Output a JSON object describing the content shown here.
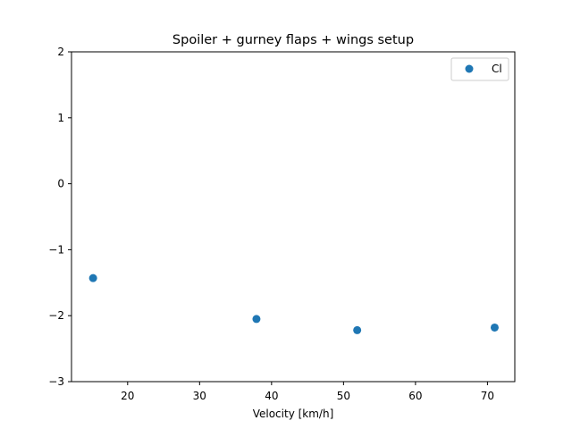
{
  "chart_data": {
    "type": "scatter",
    "title": "Spoiler + gurney flaps + wings setup",
    "xlabel": "Velocity [km/h]",
    "ylabel": "",
    "xlim": [
      12.2,
      73.8
    ],
    "ylim": [
      -3,
      2
    ],
    "xticks": [
      20,
      30,
      40,
      50,
      60,
      70
    ],
    "yticks": [
      2,
      1,
      0,
      -1,
      -2,
      -3
    ],
    "ytick_labels": [
      "2",
      "1",
      "0",
      "−1",
      "−2",
      "−3"
    ],
    "grid": false,
    "legend": "top-right",
    "series": [
      {
        "name": "Cl",
        "color": "#1f77b4",
        "x": [
          15.2,
          37.9,
          51.9,
          71.0
        ],
        "y": [
          -1.43,
          -2.05,
          -2.22,
          -2.18
        ]
      }
    ]
  }
}
